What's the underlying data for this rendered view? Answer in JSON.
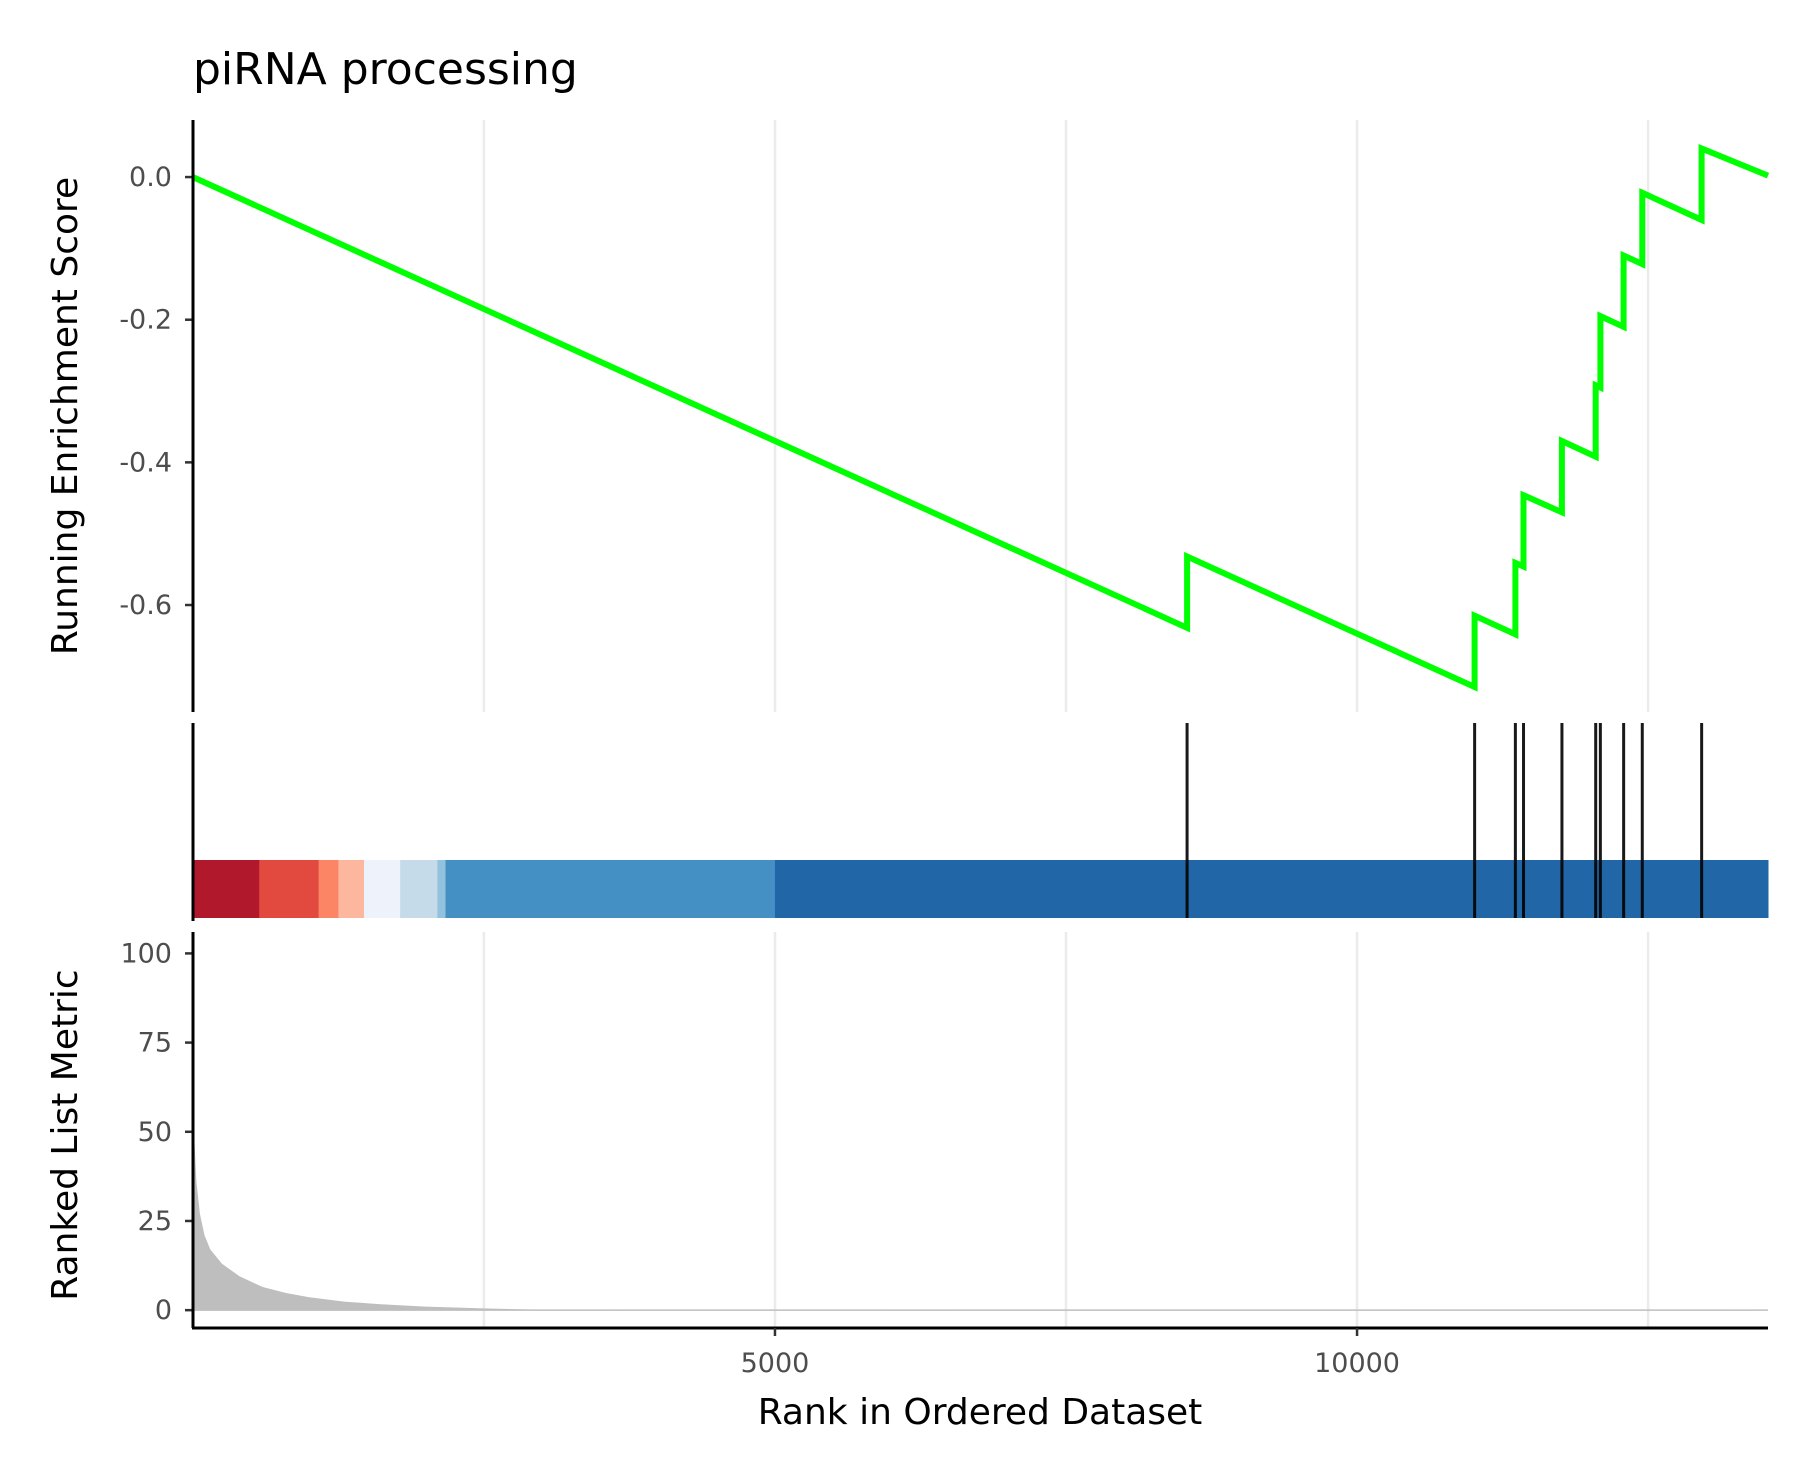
{
  "chart_data": {
    "type": "line",
    "title": "piRNA processing",
    "xlabel": "Rank in Ordered Dataset",
    "xlim": [
      1,
      13530
    ],
    "x_ticks": [
      5000,
      10000
    ],
    "x_gridlines": [
      2500,
      5000,
      7500,
      10000,
      12500
    ],
    "grid": true,
    "panels": {
      "running_score": {
        "ylabel": "Running Enrichment Score",
        "ylim": [
          -0.75,
          0.08
        ],
        "y_ticks": [
          0.0,
          -0.2,
          -0.4,
          -0.6
        ],
        "y_tick_labels": [
          "0.0",
          "-0.2",
          "-0.4",
          "-0.6"
        ],
        "series": [
          {
            "color": "#00ff00",
            "x": [
              1,
              8540,
              8540,
              11010,
              11010,
              11360,
              11360,
              11430,
              11430,
              11760,
              11760,
              12050,
              12050,
              12090,
              12090,
              12290,
              12290,
              12450,
              12450,
              12960,
              12960,
              13530
            ],
            "y": [
              0.0,
              -0.632,
              -0.532,
              -0.715,
              -0.615,
              -0.641,
              -0.541,
              -0.546,
              -0.446,
              -0.47,
              -0.37,
              -0.392,
              -0.292,
              -0.295,
              -0.195,
              -0.21,
              -0.11,
              -0.122,
              -0.022,
              -0.06,
              0.04,
              0.002
            ]
          }
        ]
      },
      "hits": {
        "positions": [
          8540,
          11010,
          11360,
          11430,
          11760,
          12050,
          12090,
          12290,
          12450,
          12960
        ],
        "color_bands": [
          {
            "start": 1,
            "end": 570,
            "color": "#b2182b"
          },
          {
            "start": 570,
            "end": 1080,
            "color": "#e34a3f"
          },
          {
            "start": 1080,
            "end": 1250,
            "color": "#fc8566"
          },
          {
            "start": 1250,
            "end": 1470,
            "color": "#fdb79f"
          },
          {
            "start": 1470,
            "end": 1780,
            "color": "#eef2fa"
          },
          {
            "start": 1780,
            "end": 2100,
            "color": "#c5dbea"
          },
          {
            "start": 2100,
            "end": 2170,
            "color": "#92c2dd"
          },
          {
            "start": 2170,
            "end": 5000,
            "color": "#4490c4"
          },
          {
            "start": 5000,
            "end": 13530,
            "color": "#2166a6"
          }
        ]
      },
      "ranked_metric": {
        "ylabel": "Ranked List Metric",
        "ylim": [
          -5,
          106
        ],
        "y_ticks": [
          0,
          25,
          50,
          75,
          100
        ],
        "y_tick_labels": [
          "0",
          "25",
          "50",
          "75",
          "100"
        ],
        "fill_color": "#bebebe",
        "x": [
          1,
          10,
          30,
          60,
          100,
          150,
          250,
          400,
          600,
          800,
          1000,
          1300,
          1600,
          2000,
          2500,
          3000,
          13530
        ],
        "y": [
          72,
          50,
          36,
          27,
          21,
          17,
          13,
          9.5,
          6.5,
          4.8,
          3.6,
          2.4,
          1.7,
          1.0,
          0.5,
          0.1,
          0
        ]
      }
    }
  }
}
